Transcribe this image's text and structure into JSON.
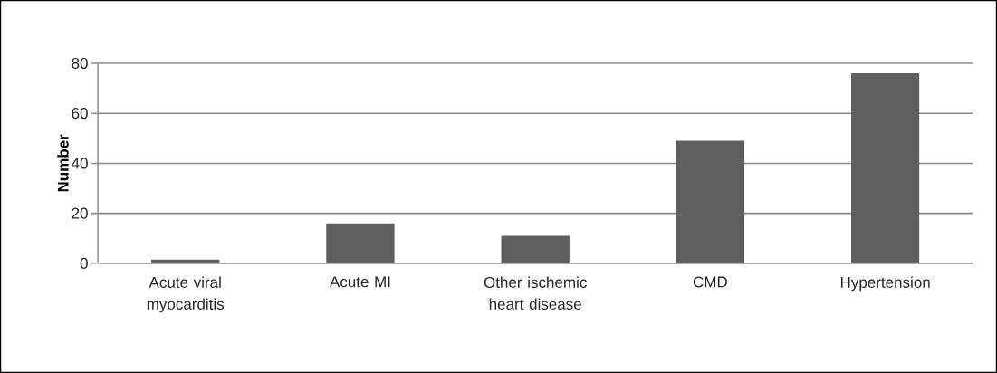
{
  "chart_data": {
    "type": "bar",
    "ylabel": "Number",
    "categories": [
      "Acute viral myocarditis",
      "Acute MI",
      "Other ischemic heart disease",
      "CMD",
      "Hypertension"
    ],
    "values": [
      1.5,
      16,
      11,
      49,
      76
    ],
    "color": "#5f5f5f",
    "ylim": [
      0,
      80
    ],
    "yticks": [
      0,
      20,
      40,
      60,
      80
    ],
    "grid": "y"
  }
}
